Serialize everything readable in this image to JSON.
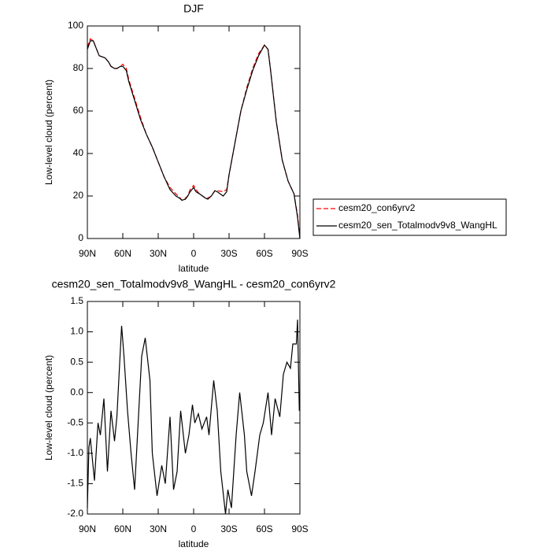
{
  "chart_data": [
    {
      "type": "line",
      "title": "DJF",
      "xlabel": "latitude",
      "ylabel": "Low-level cloud (percent)",
      "x": [
        90,
        87.5,
        85,
        80,
        75,
        72,
        70,
        67,
        65,
        62,
        60,
        57,
        55,
        50,
        45,
        40,
        35,
        30,
        25,
        20,
        15,
        12,
        10,
        7,
        5,
        3,
        0,
        -2,
        -5,
        -10,
        -12,
        -15,
        -18,
        -20,
        -25,
        -28,
        -30,
        -35,
        -40,
        -45,
        -50,
        -55,
        -60,
        -63,
        -65,
        -70,
        -75,
        -80,
        -85,
        -88,
        -90
      ],
      "series": [
        {
          "name": "cesm20_con6yrv2",
          "color": "#ff0000",
          "dashed": true,
          "values": [
            90,
            94,
            93,
            86,
            85,
            83,
            81,
            80,
            80,
            81,
            82,
            80,
            75,
            66,
            57,
            49,
            43,
            36,
            29,
            24,
            21,
            19.5,
            18,
            19,
            20,
            23,
            25,
            23,
            21,
            19,
            19,
            20,
            22.5,
            22.5,
            22,
            23,
            30,
            45,
            60,
            71,
            80,
            87,
            91,
            89,
            80,
            55,
            37,
            27,
            21,
            11,
            0
          ]
        },
        {
          "name": "cesm20_sen_Totalmodv9v8_WangHL",
          "color": "#000000",
          "dashed": false,
          "values": [
            89,
            93,
            93,
            86,
            85,
            83,
            81,
            80,
            80,
            81,
            81,
            79,
            74,
            65,
            56,
            49,
            43,
            36,
            29,
            23,
            20,
            19,
            18,
            18.5,
            20,
            22,
            24,
            22,
            21,
            19,
            18.5,
            20,
            22.5,
            22,
            20,
            22,
            30,
            45,
            60,
            70,
            79,
            86,
            91,
            89,
            80,
            55,
            37,
            27,
            21,
            10,
            0
          ]
        }
      ],
      "xlim": [
        90,
        -90
      ],
      "xticks": [
        {
          "value": 90,
          "label": "90N"
        },
        {
          "value": 60,
          "label": "60N"
        },
        {
          "value": 30,
          "label": "30N"
        },
        0,
        {
          "value": -30,
          "label": "30S"
        },
        {
          "value": -60,
          "label": "60S"
        },
        {
          "value": -90,
          "label": "90S"
        }
      ],
      "ylim": [
        0,
        100
      ],
      "yticks": [
        0,
        20,
        40,
        60,
        80,
        100
      ],
      "legend": "outside-right"
    },
    {
      "type": "line",
      "title": "cesm20_sen_Totalmodv9v8_WangHL - cesm20_con6yrv2",
      "xlabel": "latitude",
      "ylabel": "Low-level cloud (percent)",
      "x": [
        90,
        88.7,
        87.5,
        84,
        81,
        79,
        76,
        73,
        70,
        67,
        65,
        61,
        59,
        56,
        53,
        50,
        47,
        44,
        41,
        37,
        35,
        31,
        27,
        24,
        20,
        17,
        14,
        11,
        7,
        4,
        1,
        -1,
        -4,
        -7,
        -11,
        -13,
        -17,
        -20,
        -23,
        -27,
        -29,
        -32,
        -36,
        -39,
        -43,
        -45,
        -49,
        -52,
        -56,
        -59,
        -63,
        -66,
        -69,
        -73,
        -76,
        -79,
        -82,
        -84,
        -87,
        -88,
        -89.5
      ],
      "series": [
        {
          "color": "#000000",
          "dashed": false,
          "values": [
            -1.9,
            -0.9,
            -0.75,
            -1.45,
            -0.5,
            -0.7,
            -0.1,
            -1.3,
            -0.3,
            -0.8,
            -0.4,
            1.1,
            0.6,
            -0.3,
            -1.0,
            -1.6,
            -0.5,
            0.6,
            0.9,
            0.2,
            -1.0,
            -1.7,
            -1.2,
            -1.5,
            -0.4,
            -1.6,
            -1.3,
            -0.3,
            -1.0,
            -0.7,
            -0.2,
            -0.5,
            -0.35,
            -0.6,
            -0.4,
            -0.7,
            0.2,
            -0.3,
            -1.3,
            -2.0,
            -1.6,
            -1.9,
            -0.7,
            0,
            -0.7,
            -1.3,
            -1.7,
            -1.3,
            -0.7,
            -0.5,
            0,
            -0.7,
            -0.1,
            -0.4,
            0.3,
            0.5,
            0.4,
            0.8,
            0.8,
            1.2,
            -0.3
          ]
        }
      ],
      "xlim": [
        90,
        -90
      ],
      "xticks": [
        {
          "value": 90,
          "label": "90N"
        },
        {
          "value": 60,
          "label": "60N"
        },
        {
          "value": 30,
          "label": "30N"
        },
        0,
        {
          "value": -30,
          "label": "30S"
        },
        {
          "value": -60,
          "label": "60S"
        },
        {
          "value": -90,
          "label": "90S"
        }
      ],
      "ylim": [
        -2.0,
        1.5
      ],
      "yticks": [
        {
          "value": -2.0,
          "label": "-2.0"
        },
        -1.5,
        {
          "value": -1.0,
          "label": "-1.0"
        },
        -0.5,
        {
          "value": 0,
          "label": "0.0"
        },
        0.5,
        {
          "value": 1.0,
          "label": "1.0"
        },
        1.5
      ]
    }
  ]
}
